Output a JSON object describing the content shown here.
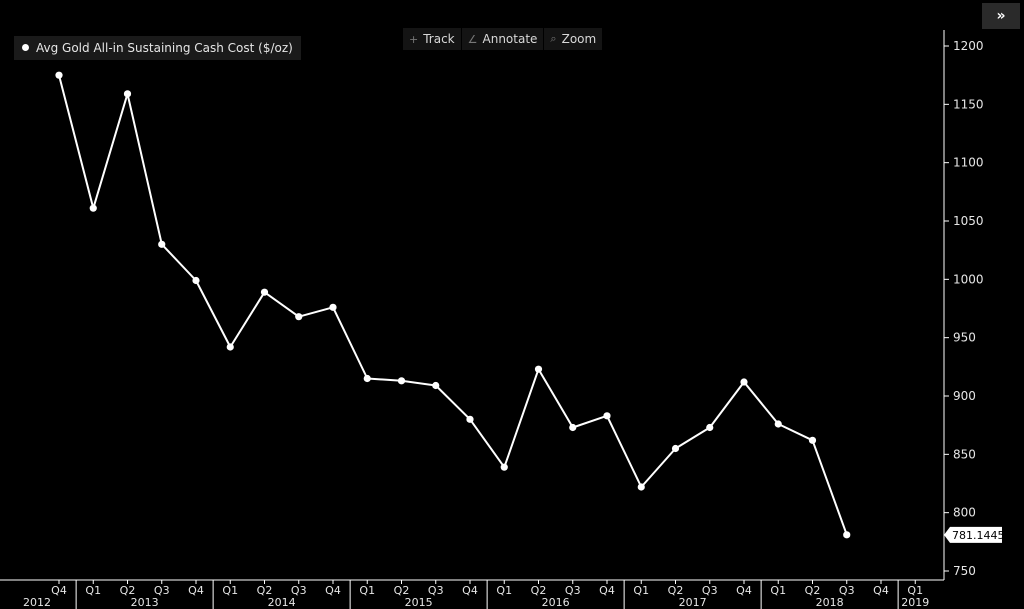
{
  "toolbar": {
    "track_label": "Track",
    "annotate_label": "Annotate",
    "zoom_label": "Zoom",
    "track_icon": "+",
    "annotate_icon": "∠",
    "zoom_icon": "⌕"
  },
  "expand_button": "»",
  "legend": {
    "label": "Avg Gold All-in Sustaining Cash Cost ($/oz)"
  },
  "colors": {
    "background": "#000000",
    "line": "#ffffff",
    "axis": "#ffffff",
    "text": "#e6e6e6"
  },
  "chart_data": {
    "type": "line",
    "title": "",
    "xlabel": "",
    "ylabel": "",
    "ylim": [
      750,
      1200
    ],
    "y_ticks": [
      750,
      800,
      850,
      900,
      950,
      1000,
      1050,
      1100,
      1150,
      1200
    ],
    "quarter_labels": [
      "Q4",
      "Q1",
      "Q2",
      "Q3",
      "Q4",
      "Q1",
      "Q2",
      "Q3",
      "Q4",
      "Q1",
      "Q2",
      "Q3",
      "Q4",
      "Q1",
      "Q2",
      "Q3",
      "Q4",
      "Q1",
      "Q2",
      "Q3",
      "Q4",
      "Q1",
      "Q2",
      "Q3",
      "Q4",
      "Q1"
    ],
    "year_labels": [
      "2012",
      "2013",
      "2014",
      "2015",
      "2016",
      "2017",
      "2018",
      "2019"
    ],
    "year_first_quarter_index": [
      0,
      1,
      5,
      9,
      13,
      17,
      21,
      25
    ],
    "series": [
      {
        "name": "Avg Gold All-in Sustaining Cash Cost ($/oz)",
        "x": [
          "Q4 2012",
          "Q1 2013",
          "Q2 2013",
          "Q3 2013",
          "Q4 2013",
          "Q1 2014",
          "Q2 2014",
          "Q3 2014",
          "Q4 2014",
          "Q1 2015",
          "Q2 2015",
          "Q3 2015",
          "Q4 2015",
          "Q1 2016",
          "Q2 2016",
          "Q3 2016",
          "Q4 2016",
          "Q1 2017",
          "Q2 2017",
          "Q3 2017",
          "Q4 2017",
          "Q1 2018",
          "Q2 2018",
          "Q3 2018"
        ],
        "values": [
          1175,
          1061,
          1159,
          1030,
          999,
          942,
          989,
          968,
          976,
          915,
          913,
          909,
          880,
          839,
          923,
          873,
          883,
          822,
          855,
          873,
          912,
          876,
          862,
          781
        ]
      }
    ],
    "last_value_label": "781.1445"
  }
}
